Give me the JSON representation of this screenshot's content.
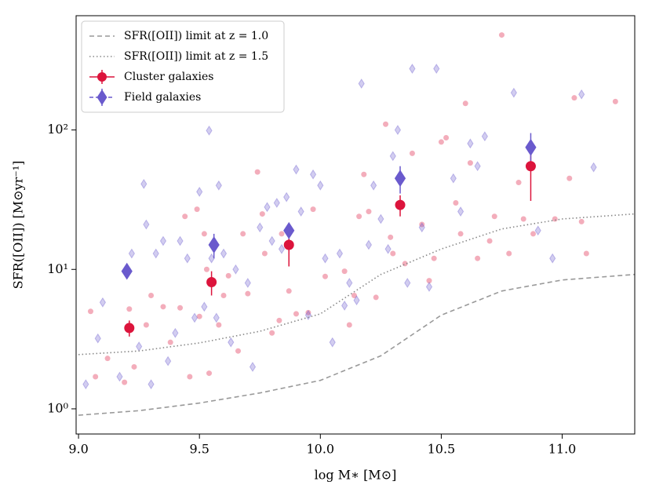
{
  "chart_data": {
    "type": "scatter",
    "xlabel": "log M∗ [M⊙]",
    "ylabel": "SFR([OII]) [M⊙yr⁻¹]",
    "xlim": [
      8.99,
      11.3
    ],
    "ylim": [
      0.66,
      660
    ],
    "yscale": "log",
    "legend": "upper left",
    "xticks": [
      {
        "value": 9,
        "label": "9.0"
      },
      {
        "value": 9.5,
        "label": "9.5"
      },
      {
        "value": 10,
        "label": "10.0"
      },
      {
        "value": 10.5,
        "label": "10.5"
      },
      {
        "value": 11,
        "label": "11.0"
      }
    ],
    "yticks": [
      {
        "value": 1,
        "label": "10⁰"
      },
      {
        "value": 10,
        "label": "10¹"
      },
      {
        "value": 100,
        "label": "10²"
      }
    ],
    "series": [
      {
        "name": "SFR([OII]) limit at z = 1.0",
        "color": "#999999",
        "style": "dashed",
        "x": [
          9.0,
          9.25,
          9.5,
          9.75,
          10.0,
          10.25,
          10.5,
          10.75,
          11.0,
          11.3
        ],
        "values": [
          0.9,
          0.97,
          1.1,
          1.3,
          1.6,
          2.4,
          4.7,
          7.0,
          8.4,
          9.2
        ]
      },
      {
        "name": "SFR([OII]) limit at z = 1.5",
        "color": "#888888",
        "style": "dotted",
        "x": [
          9.0,
          9.25,
          9.5,
          9.75,
          10.0,
          10.25,
          10.5,
          10.75,
          11.0,
          11.3
        ],
        "values": [
          2.45,
          2.6,
          2.97,
          3.6,
          4.8,
          9.2,
          14,
          19.5,
          23,
          25
        ]
      },
      {
        "name": "Cluster galaxies",
        "color": "#dc143c",
        "marker": "circle",
        "x": [
          9.21,
          9.55,
          9.87,
          10.33,
          10.87
        ],
        "values": [
          3.8,
          8.1,
          15,
          29,
          55
        ],
        "yerr_low": [
          0.5,
          1.6,
          4.5,
          5,
          24
        ],
        "yerr_high": [
          0.5,
          1.6,
          4.5,
          5,
          20
        ]
      },
      {
        "name": "Field galaxies",
        "color": "#6a5acd",
        "marker": "diamond",
        "x": [
          9.2,
          9.56,
          9.87,
          10.33,
          10.87
        ],
        "values": [
          9.7,
          15,
          19,
          45,
          75
        ],
        "yerr_low": [
          1,
          3,
          2.5,
          10,
          15
        ],
        "yerr_high": [
          1,
          3,
          2.5,
          10,
          20
        ]
      },
      {
        "color": "#dc143c",
        "marker": "circle",
        "alpha": 0.35,
        "x": [
          9.05,
          9.07,
          9.12,
          9.19,
          9.21,
          9.23,
          9.28,
          9.3,
          9.35,
          9.38,
          9.42,
          9.44,
          9.46,
          9.49,
          9.5,
          9.52,
          9.53,
          9.54,
          9.58,
          9.6,
          9.62,
          9.66,
          9.68,
          9.7,
          9.74,
          9.76,
          9.77,
          9.8,
          9.83,
          9.84,
          9.87,
          9.9,
          9.95,
          9.97,
          10.02,
          10.1,
          10.12,
          10.14,
          10.16,
          10.18,
          10.2,
          10.23,
          10.27,
          10.29,
          10.3,
          10.35,
          10.38,
          10.42,
          10.45,
          10.47,
          10.5,
          10.52,
          10.56,
          10.58,
          10.6,
          10.62,
          10.65,
          10.7,
          10.72,
          10.75,
          10.78,
          10.82,
          10.84,
          10.88,
          10.97,
          11.03,
          11.05,
          11.08,
          11.1,
          11.22
        ],
        "values": [
          5.0,
          1.7,
          2.3,
          1.55,
          5.2,
          2.0,
          4.0,
          6.5,
          5.4,
          3.0,
          5.3,
          24,
          1.7,
          27,
          4.6,
          18,
          10,
          1.8,
          4.0,
          6.5,
          9.0,
          2.6,
          18,
          6.7,
          50,
          25,
          13,
          3.5,
          4.3,
          18,
          7,
          4.8,
          4.9,
          27,
          8.9,
          9.7,
          4,
          6.5,
          24,
          48,
          26,
          6.3,
          110,
          17,
          13,
          11,
          68,
          21,
          8.3,
          12,
          82,
          88,
          30,
          18,
          155,
          58,
          12,
          16,
          24,
          480,
          13,
          42,
          23,
          18,
          23,
          45,
          170,
          22,
          13,
          160
        ]
      },
      {
        "color": "#6a5acd",
        "marker": "diamond",
        "alpha": 0.3,
        "x": [
          9.03,
          9.08,
          9.1,
          9.17,
          9.22,
          9.25,
          9.27,
          9.28,
          9.3,
          9.32,
          9.35,
          9.37,
          9.4,
          9.42,
          9.45,
          9.48,
          9.5,
          9.52,
          9.54,
          9.55,
          9.57,
          9.58,
          9.6,
          9.63,
          9.65,
          9.7,
          9.72,
          9.75,
          9.78,
          9.8,
          9.82,
          9.84,
          9.86,
          9.9,
          9.92,
          9.95,
          9.97,
          10.0,
          10.02,
          10.05,
          10.08,
          10.1,
          10.12,
          10.15,
          10.17,
          10.2,
          10.22,
          10.25,
          10.28,
          10.3,
          10.32,
          10.36,
          10.38,
          10.42,
          10.45,
          10.48,
          10.55,
          10.58,
          10.62,
          10.65,
          10.68,
          10.8,
          10.9,
          10.96,
          11.08,
          11.13
        ],
        "values": [
          1.5,
          3.2,
          5.8,
          1.7,
          13,
          2.8,
          41,
          21,
          1.5,
          13,
          16,
          2.2,
          3.5,
          16,
          12,
          4.5,
          36,
          5.4,
          99,
          12,
          4.5,
          40,
          13,
          3,
          10,
          8,
          2,
          20,
          28,
          16,
          30,
          14,
          33,
          52,
          26,
          4.7,
          48,
          40,
          12,
          3,
          13,
          5.5,
          8,
          6,
          215,
          15,
          40,
          23,
          14,
          65,
          100,
          8,
          275,
          20,
          7.5,
          275,
          45,
          26,
          80,
          55,
          90,
          185,
          19,
          12,
          180,
          54
        ]
      }
    ]
  }
}
